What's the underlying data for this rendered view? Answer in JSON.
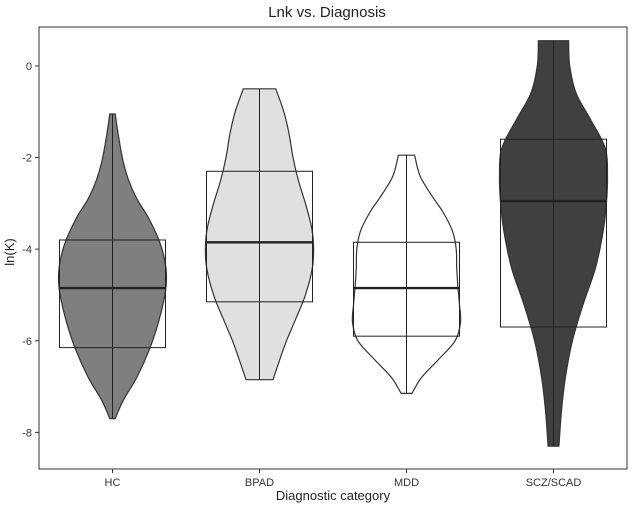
{
  "chart_data": {
    "type": "violin",
    "title": "Lnk vs. Diagnosis",
    "xlabel": "Diagnostic category",
    "ylabel": "ln(K)",
    "categories": [
      "HC",
      "BPAD",
      "MDD",
      "SCZ/SCAD"
    ],
    "ylim": [
      -8.8,
      0.85
    ],
    "yticks": [
      0,
      -2,
      -4,
      -6,
      -8
    ],
    "ytick_labels": [
      "0",
      "-2",
      "-4",
      "-6",
      "-8"
    ],
    "grid": false,
    "legend": "none",
    "groups": [
      {
        "name": "HC",
        "fill": "#7f7f7f",
        "box": {
          "q1": -6.15,
          "median": -4.85,
          "q3": -3.8
        },
        "whisker": {
          "min": -7.7,
          "max": -1.05
        },
        "density": [
          {
            "y": -7.7,
            "w": 0.05
          },
          {
            "y": -7.3,
            "w": 0.2
          },
          {
            "y": -6.8,
            "w": 0.45
          },
          {
            "y": -6.2,
            "w": 0.68
          },
          {
            "y": -5.6,
            "w": 0.85
          },
          {
            "y": -5.0,
            "w": 0.97
          },
          {
            "y": -4.6,
            "w": 1.0
          },
          {
            "y": -4.2,
            "w": 0.96
          },
          {
            "y": -3.8,
            "w": 0.86
          },
          {
            "y": -3.3,
            "w": 0.66
          },
          {
            "y": -2.9,
            "w": 0.45
          },
          {
            "y": -2.5,
            "w": 0.3
          },
          {
            "y": -2.1,
            "w": 0.2
          },
          {
            "y": -1.6,
            "w": 0.12
          },
          {
            "y": -1.05,
            "w": 0.05
          }
        ]
      },
      {
        "name": "BPAD",
        "fill": "#e0e0e0",
        "box": {
          "q1": -5.15,
          "median": -3.85,
          "q3": -2.3
        },
        "whisker": {
          "min": -6.85,
          "max": -0.5
        },
        "density": [
          {
            "y": -6.85,
            "w": 0.25
          },
          {
            "y": -6.5,
            "w": 0.35
          },
          {
            "y": -6.0,
            "w": 0.5
          },
          {
            "y": -5.5,
            "w": 0.68
          },
          {
            "y": -5.0,
            "w": 0.85
          },
          {
            "y": -4.4,
            "w": 0.98
          },
          {
            "y": -3.9,
            "w": 1.0
          },
          {
            "y": -3.5,
            "w": 0.96
          },
          {
            "y": -3.0,
            "w": 0.85
          },
          {
            "y": -2.5,
            "w": 0.72
          },
          {
            "y": -2.0,
            "w": 0.62
          },
          {
            "y": -1.5,
            "w": 0.55
          },
          {
            "y": -1.0,
            "w": 0.45
          },
          {
            "y": -0.5,
            "w": 0.3
          }
        ]
      },
      {
        "name": "MDD",
        "fill": "#ffffff",
        "box": {
          "q1": -5.9,
          "median": -4.85,
          "q3": -3.85
        },
        "whisker": {
          "min": -7.15,
          "max": -1.95
        },
        "density": [
          {
            "y": -7.15,
            "w": 0.1
          },
          {
            "y": -6.8,
            "w": 0.28
          },
          {
            "y": -6.4,
            "w": 0.6
          },
          {
            "y": -6.0,
            "w": 0.9
          },
          {
            "y": -5.6,
            "w": 1.0
          },
          {
            "y": -5.2,
            "w": 0.98
          },
          {
            "y": -4.8,
            "w": 0.95
          },
          {
            "y": -4.4,
            "w": 0.93
          },
          {
            "y": -4.0,
            "w": 0.92
          },
          {
            "y": -3.6,
            "w": 0.85
          },
          {
            "y": -3.2,
            "w": 0.68
          },
          {
            "y": -2.8,
            "w": 0.45
          },
          {
            "y": -2.4,
            "w": 0.25
          },
          {
            "y": -1.95,
            "w": 0.15
          }
        ]
      },
      {
        "name": "SCZ/SCAD",
        "fill": "#404040",
        "box": {
          "q1": -5.7,
          "median": -2.95,
          "q3": -1.6
        },
        "whisker": {
          "min": -8.3,
          "max": 0.55
        },
        "density": [
          {
            "y": -8.3,
            "w": 0.1
          },
          {
            "y": -7.5,
            "w": 0.15
          },
          {
            "y": -6.8,
            "w": 0.22
          },
          {
            "y": -6.0,
            "w": 0.35
          },
          {
            "y": -5.2,
            "w": 0.55
          },
          {
            "y": -4.4,
            "w": 0.78
          },
          {
            "y": -3.6,
            "w": 0.92
          },
          {
            "y": -3.0,
            "w": 0.98
          },
          {
            "y": -2.4,
            "w": 1.0
          },
          {
            "y": -1.8,
            "w": 0.96
          },
          {
            "y": -1.2,
            "w": 0.7
          },
          {
            "y": -0.6,
            "w": 0.42
          },
          {
            "y": 0.0,
            "w": 0.3
          },
          {
            "y": 0.55,
            "w": 0.28
          }
        ]
      }
    ]
  }
}
